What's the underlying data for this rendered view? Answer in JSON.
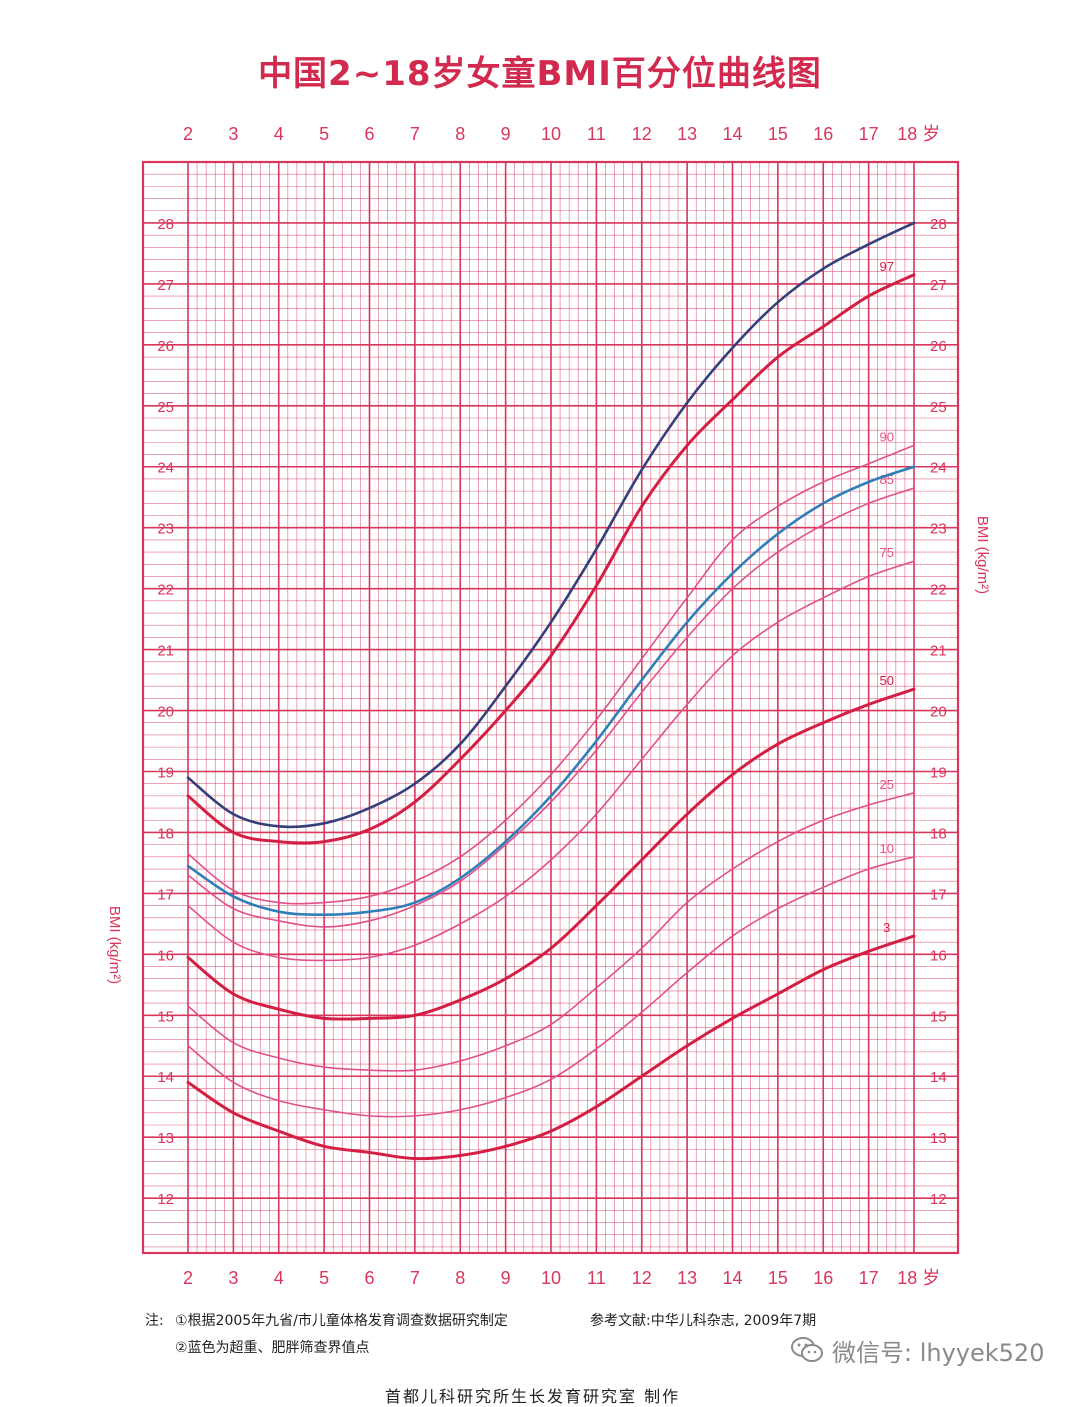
{
  "title": "中国2~18岁女童BMI百分位曲线图",
  "notes": {
    "note_label": "注:",
    "note1": "①根据2005年九省/市儿童体格发育调查数据研究制定",
    "reference": "参考文献:中华儿科杂志, 2009年7期",
    "note2": "②蓝色为超重、肥胖筛查界值点",
    "producer": "首都儿科研究所生长发育研究室 制作"
  },
  "watermark": {
    "icon": "wechat-icon",
    "text": "微信号: lhyyek520"
  },
  "colors": {
    "grid": "#d8365c",
    "pink_curve": "#e0508a",
    "red_curve": "#d41f45",
    "blue_curve": "#2f7fb8",
    "navy_curve": "#34407a"
  },
  "chart_data": {
    "type": "line",
    "title": "中国2~18岁女童BMI百分位曲线图",
    "x_tick_labels": [
      "2",
      "3",
      "4",
      "5",
      "6",
      "7",
      "8",
      "9",
      "10",
      "11",
      "12",
      "13",
      "14",
      "15",
      "16",
      "17",
      "18 岁"
    ],
    "y_tick_labels": [
      "12",
      "13",
      "14",
      "15",
      "16",
      "17",
      "18",
      "19",
      "20",
      "21",
      "22",
      "23",
      "24",
      "25",
      "26",
      "27",
      "28"
    ],
    "ylabel": "BMI (kg/m²)",
    "xlim": [
      2,
      18
    ],
    "ylim": [
      11.1,
      29.0
    ],
    "grid": true,
    "x": [
      2,
      3,
      4,
      5,
      6,
      7,
      8,
      9,
      10,
      11,
      12,
      13,
      14,
      15,
      16,
      17,
      18
    ],
    "series": [
      {
        "name": "97",
        "style": "red",
        "values": [
          18.6,
          18.0,
          17.85,
          17.85,
          18.05,
          18.5,
          19.2,
          20.0,
          20.9,
          22.05,
          23.35,
          24.35,
          25.1,
          25.8,
          26.3,
          26.8,
          27.15
        ]
      },
      {
        "name": "90",
        "style": "pink",
        "values": [
          17.65,
          17.05,
          16.85,
          16.85,
          16.95,
          17.2,
          17.6,
          18.2,
          18.95,
          19.85,
          20.85,
          21.85,
          22.8,
          23.35,
          23.75,
          24.05,
          24.35
        ]
      },
      {
        "name": "85",
        "style": "pink",
        "values": [
          17.3,
          16.75,
          16.55,
          16.45,
          16.55,
          16.8,
          17.2,
          17.8,
          18.5,
          19.35,
          20.3,
          21.2,
          22.0,
          22.6,
          23.05,
          23.4,
          23.65
        ]
      },
      {
        "name": "75",
        "style": "pink",
        "values": [
          16.8,
          16.2,
          15.95,
          15.9,
          15.95,
          16.15,
          16.5,
          16.95,
          17.55,
          18.3,
          19.2,
          20.1,
          20.9,
          21.45,
          21.85,
          22.2,
          22.45
        ]
      },
      {
        "name": "50",
        "style": "red",
        "values": [
          15.95,
          15.35,
          15.1,
          14.95,
          14.95,
          15.0,
          15.25,
          15.6,
          16.1,
          16.8,
          17.55,
          18.3,
          18.95,
          19.45,
          19.8,
          20.1,
          20.35
        ]
      },
      {
        "name": "25",
        "style": "pink",
        "values": [
          15.15,
          14.55,
          14.3,
          14.15,
          14.1,
          14.1,
          14.25,
          14.5,
          14.85,
          15.45,
          16.1,
          16.85,
          17.4,
          17.85,
          18.2,
          18.45,
          18.65
        ]
      },
      {
        "name": "10",
        "style": "pink",
        "values": [
          14.5,
          13.9,
          13.6,
          13.45,
          13.35,
          13.35,
          13.45,
          13.65,
          13.95,
          14.45,
          15.05,
          15.7,
          16.3,
          16.75,
          17.1,
          17.4,
          17.6
        ]
      },
      {
        "name": "3",
        "style": "red",
        "values": [
          13.9,
          13.4,
          13.1,
          12.85,
          12.75,
          12.65,
          12.7,
          12.85,
          13.1,
          13.5,
          14.0,
          14.5,
          14.95,
          15.35,
          15.75,
          16.05,
          16.3
        ]
      },
      {
        "style": "blue",
        "values": [
          17.45,
          16.95,
          16.7,
          16.65,
          16.7,
          16.85,
          17.25,
          17.85,
          18.6,
          19.5,
          20.5,
          21.45,
          22.25,
          22.9,
          23.4,
          23.75,
          24.0
        ]
      },
      {
        "style": "navy",
        "values": [
          18.9,
          18.3,
          18.1,
          18.15,
          18.4,
          18.8,
          19.45,
          20.4,
          21.45,
          22.65,
          23.95,
          25.05,
          25.95,
          26.7,
          27.25,
          27.65,
          28.0
        ]
      }
    ]
  }
}
